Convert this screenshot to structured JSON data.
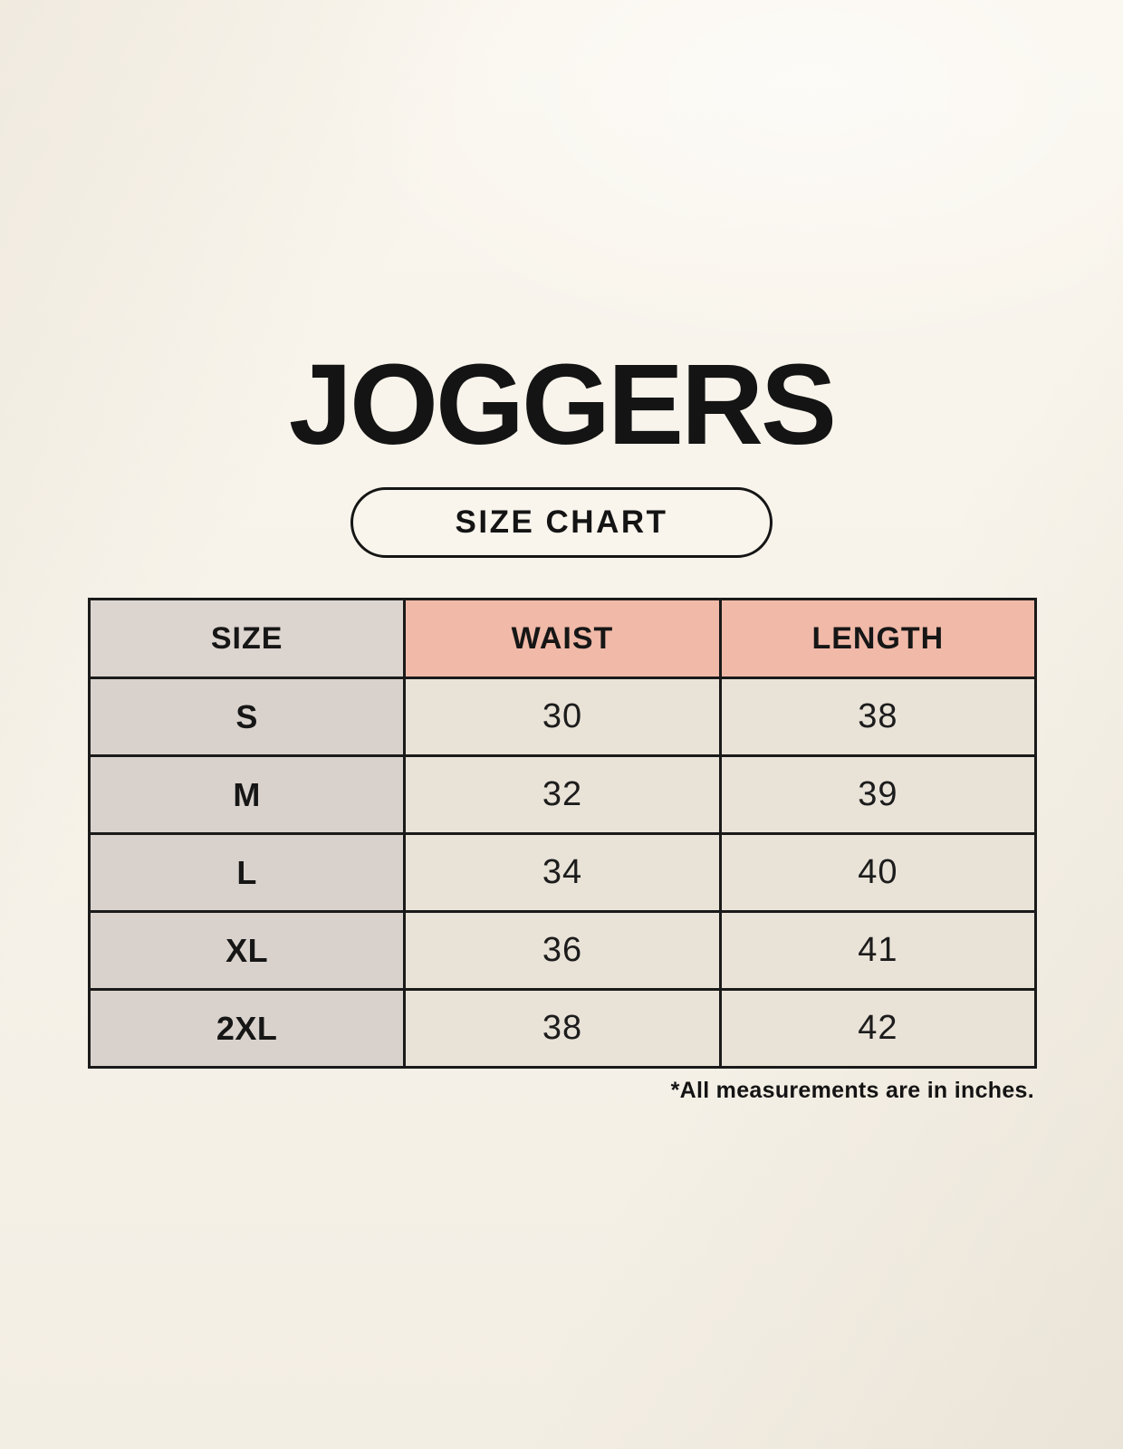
{
  "page": {
    "title": "JOGGERS",
    "badge_label": "SIZE CHART",
    "footnote": "*All measurements are in inches."
  },
  "table": {
    "headers": [
      "SIZE",
      "WAIST",
      "LENGTH"
    ],
    "rows": [
      [
        "S",
        "30",
        "38"
      ],
      [
        "M",
        "32",
        "39"
      ],
      [
        "L",
        "34",
        "40"
      ],
      [
        "XL",
        "36",
        "41"
      ],
      [
        "2XL",
        "38",
        "42"
      ]
    ]
  },
  "chart_data": {
    "type": "table",
    "title": "JOGGERS",
    "columns": [
      "SIZE",
      "WAIST",
      "LENGTH"
    ],
    "rows": [
      {
        "SIZE": "S",
        "WAIST": 30,
        "LENGTH": 38
      },
      {
        "SIZE": "M",
        "WAIST": 32,
        "LENGTH": 39
      },
      {
        "SIZE": "L",
        "WAIST": 34,
        "LENGTH": 40
      },
      {
        "SIZE": "XL",
        "WAIST": 36,
        "LENGTH": 41
      },
      {
        "SIZE": "2XL",
        "WAIST": 38,
        "LENGTH": 42
      }
    ],
    "units_note": "*All measurements are in inches."
  },
  "colors": {
    "page_background": "#f6f2e9",
    "header_accent_pink": "#f1b9a8",
    "size_column_gray": "#dcd4cf",
    "data_cell_beige": "#e9e2d7",
    "table_border": "#1a1a1a",
    "text": "#161616"
  }
}
